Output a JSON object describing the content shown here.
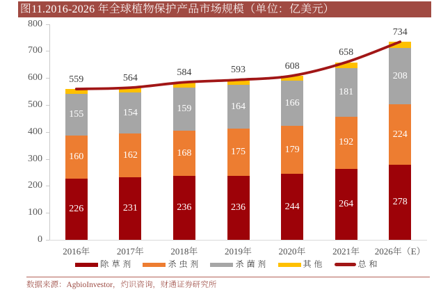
{
  "title": "图11.2016-2026 年全球植物保护产品市场规模（单位：亿美元）",
  "source_note": "数据来源：AgbioInvestor，灼识咨询，财通证券研究所",
  "colors": {
    "banner_bg": "#A04A42",
    "banner_text": "#FFFFFF",
    "herbicide": "#9D0208",
    "insecticide": "#ED7D31",
    "fungicide": "#A6A6A6",
    "other": "#FFC000",
    "total_line": "#A11616",
    "axis": "#C9C9C9",
    "baseline": "#D9D9D9",
    "tick_label": "#595959",
    "x_label": "#4D4D4D",
    "total_label": "#3C3C3C",
    "bar_label": "#FFFFFF",
    "legend_text": "#262626",
    "source_text": "#9C4A42",
    "divider": "#B26157"
  },
  "chart_data": {
    "type": "bar",
    "subtype": "stacked-bar-with-line",
    "title": "图11.2016-2026 年全球植物保护产品市场规模（单位：亿美元）",
    "categories": [
      "2016年",
      "2017年",
      "2018年",
      "2019年",
      "2020年",
      "2021年",
      "2026年（E）"
    ],
    "series": [
      {
        "name": "除草剂",
        "type": "bar",
        "color_key": "herbicide",
        "values": [
          226,
          231,
          236,
          236,
          244,
          264,
          278
        ],
        "show_labels": true
      },
      {
        "name": "杀虫剂",
        "type": "bar",
        "color_key": "insecticide",
        "values": [
          160,
          162,
          168,
          175,
          179,
          192,
          224
        ],
        "show_labels": true
      },
      {
        "name": "杀菌剂",
        "type": "bar",
        "color_key": "fungicide",
        "values": [
          155,
          154,
          159,
          164,
          166,
          181,
          208
        ],
        "show_labels": true
      },
      {
        "name": "其他",
        "type": "bar",
        "color_key": "other",
        "values": [
          18,
          17,
          21,
          18,
          19,
          21,
          24
        ],
        "show_labels": false
      },
      {
        "name": "总和",
        "type": "line",
        "color_key": "total_line",
        "values": [
          559,
          564,
          584,
          593,
          608,
          658,
          734
        ],
        "show_labels": false
      }
    ],
    "total_labels": [
      559,
      564,
      584,
      593,
      608,
      658,
      734
    ],
    "xlabel": "",
    "ylabel": "",
    "ylim": [
      0,
      800
    ],
    "ytick_step": 100,
    "grid": false,
    "legend_position": "bottom"
  }
}
